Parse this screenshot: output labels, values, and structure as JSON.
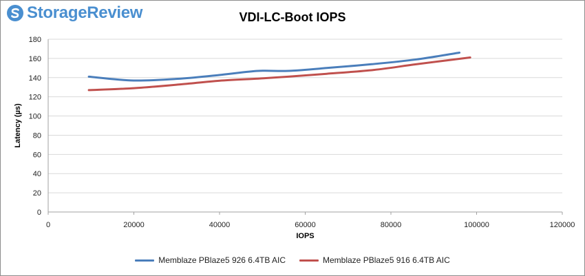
{
  "logo": {
    "text": "StorageReview",
    "color": "#4a8fd0"
  },
  "chart_data": {
    "type": "line",
    "title": "VDI-LC-Boot IOPS",
    "xlabel": "IOPS",
    "ylabel": "Latency (µs)",
    "xlim": [
      0,
      120000
    ],
    "ylim": [
      0,
      180
    ],
    "xticks": [
      0,
      20000,
      40000,
      60000,
      80000,
      100000,
      120000
    ],
    "yticks": [
      0,
      20,
      40,
      60,
      80,
      100,
      120,
      140,
      160,
      180
    ],
    "grid": true,
    "legend_position": "bottom",
    "series": [
      {
        "name": "Memblaze PBlaze5 926 6.4TB AIC",
        "color": "#4a7ebb",
        "points": [
          [
            9500,
            141
          ],
          [
            20000,
            137
          ],
          [
            31000,
            139
          ],
          [
            40500,
            143
          ],
          [
            49000,
            147
          ],
          [
            56000,
            147
          ],
          [
            65000,
            150
          ],
          [
            75500,
            154
          ],
          [
            86000,
            159
          ],
          [
            96000,
            166
          ]
        ]
      },
      {
        "name": "Memblaze PBlaze5 916 6.4TB AIC",
        "color": "#c0504d",
        "points": [
          [
            9500,
            127
          ],
          [
            20000,
            129
          ],
          [
            31000,
            133
          ],
          [
            40500,
            137
          ],
          [
            49000,
            139
          ],
          [
            56000,
            141
          ],
          [
            65000,
            144
          ],
          [
            76000,
            148
          ],
          [
            86000,
            154
          ],
          [
            98500,
            161
          ]
        ]
      }
    ]
  }
}
